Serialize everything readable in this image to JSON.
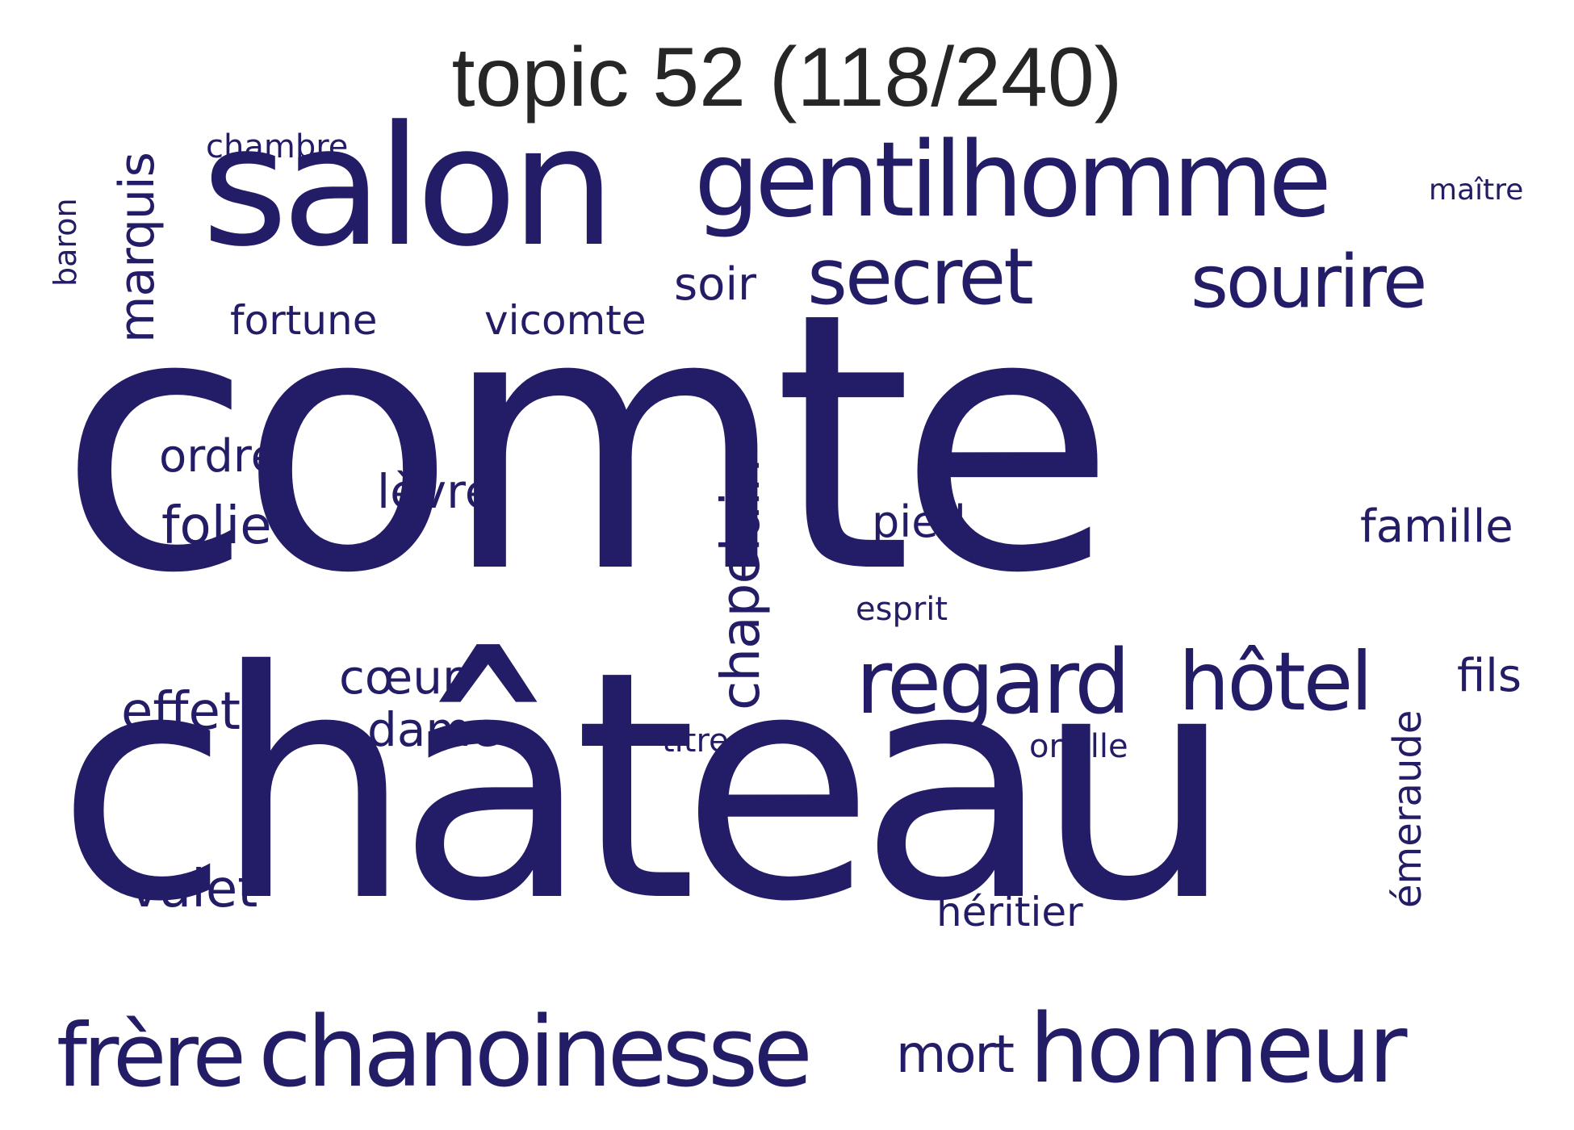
{
  "title": "topic 52 (118/240)",
  "word_color": "#231c66",
  "words": {
    "comte": "comte",
    "chateau": "château",
    "salon": "salon",
    "gentilhomme": "gentilhomme",
    "secret": "secret",
    "sourire": "sourire",
    "regard": "regard",
    "hotel": "hôtel",
    "honneur": "honneur",
    "chanoinesse": "chanoinesse",
    "frere": "frère",
    "chapelain": "chapelain",
    "marquis": "marquis",
    "emeraude": "émeraude",
    "baron": "baron",
    "chambre": "chambre",
    "maitre": "maître",
    "soir": "soir",
    "fortune": "fortune",
    "vicomte": "vicomte",
    "ordre": "ordre",
    "folie": "folie",
    "levre": "lèvre",
    "pied": "pied",
    "famille": "famille",
    "esprit": "esprit",
    "fils": "fils",
    "effet": "effet",
    "coeur": "cœur",
    "dame": "dame",
    "titre": "titre",
    "oreille": "oreille",
    "valet": "valet",
    "heritier": "héritier",
    "mort": "mort"
  }
}
